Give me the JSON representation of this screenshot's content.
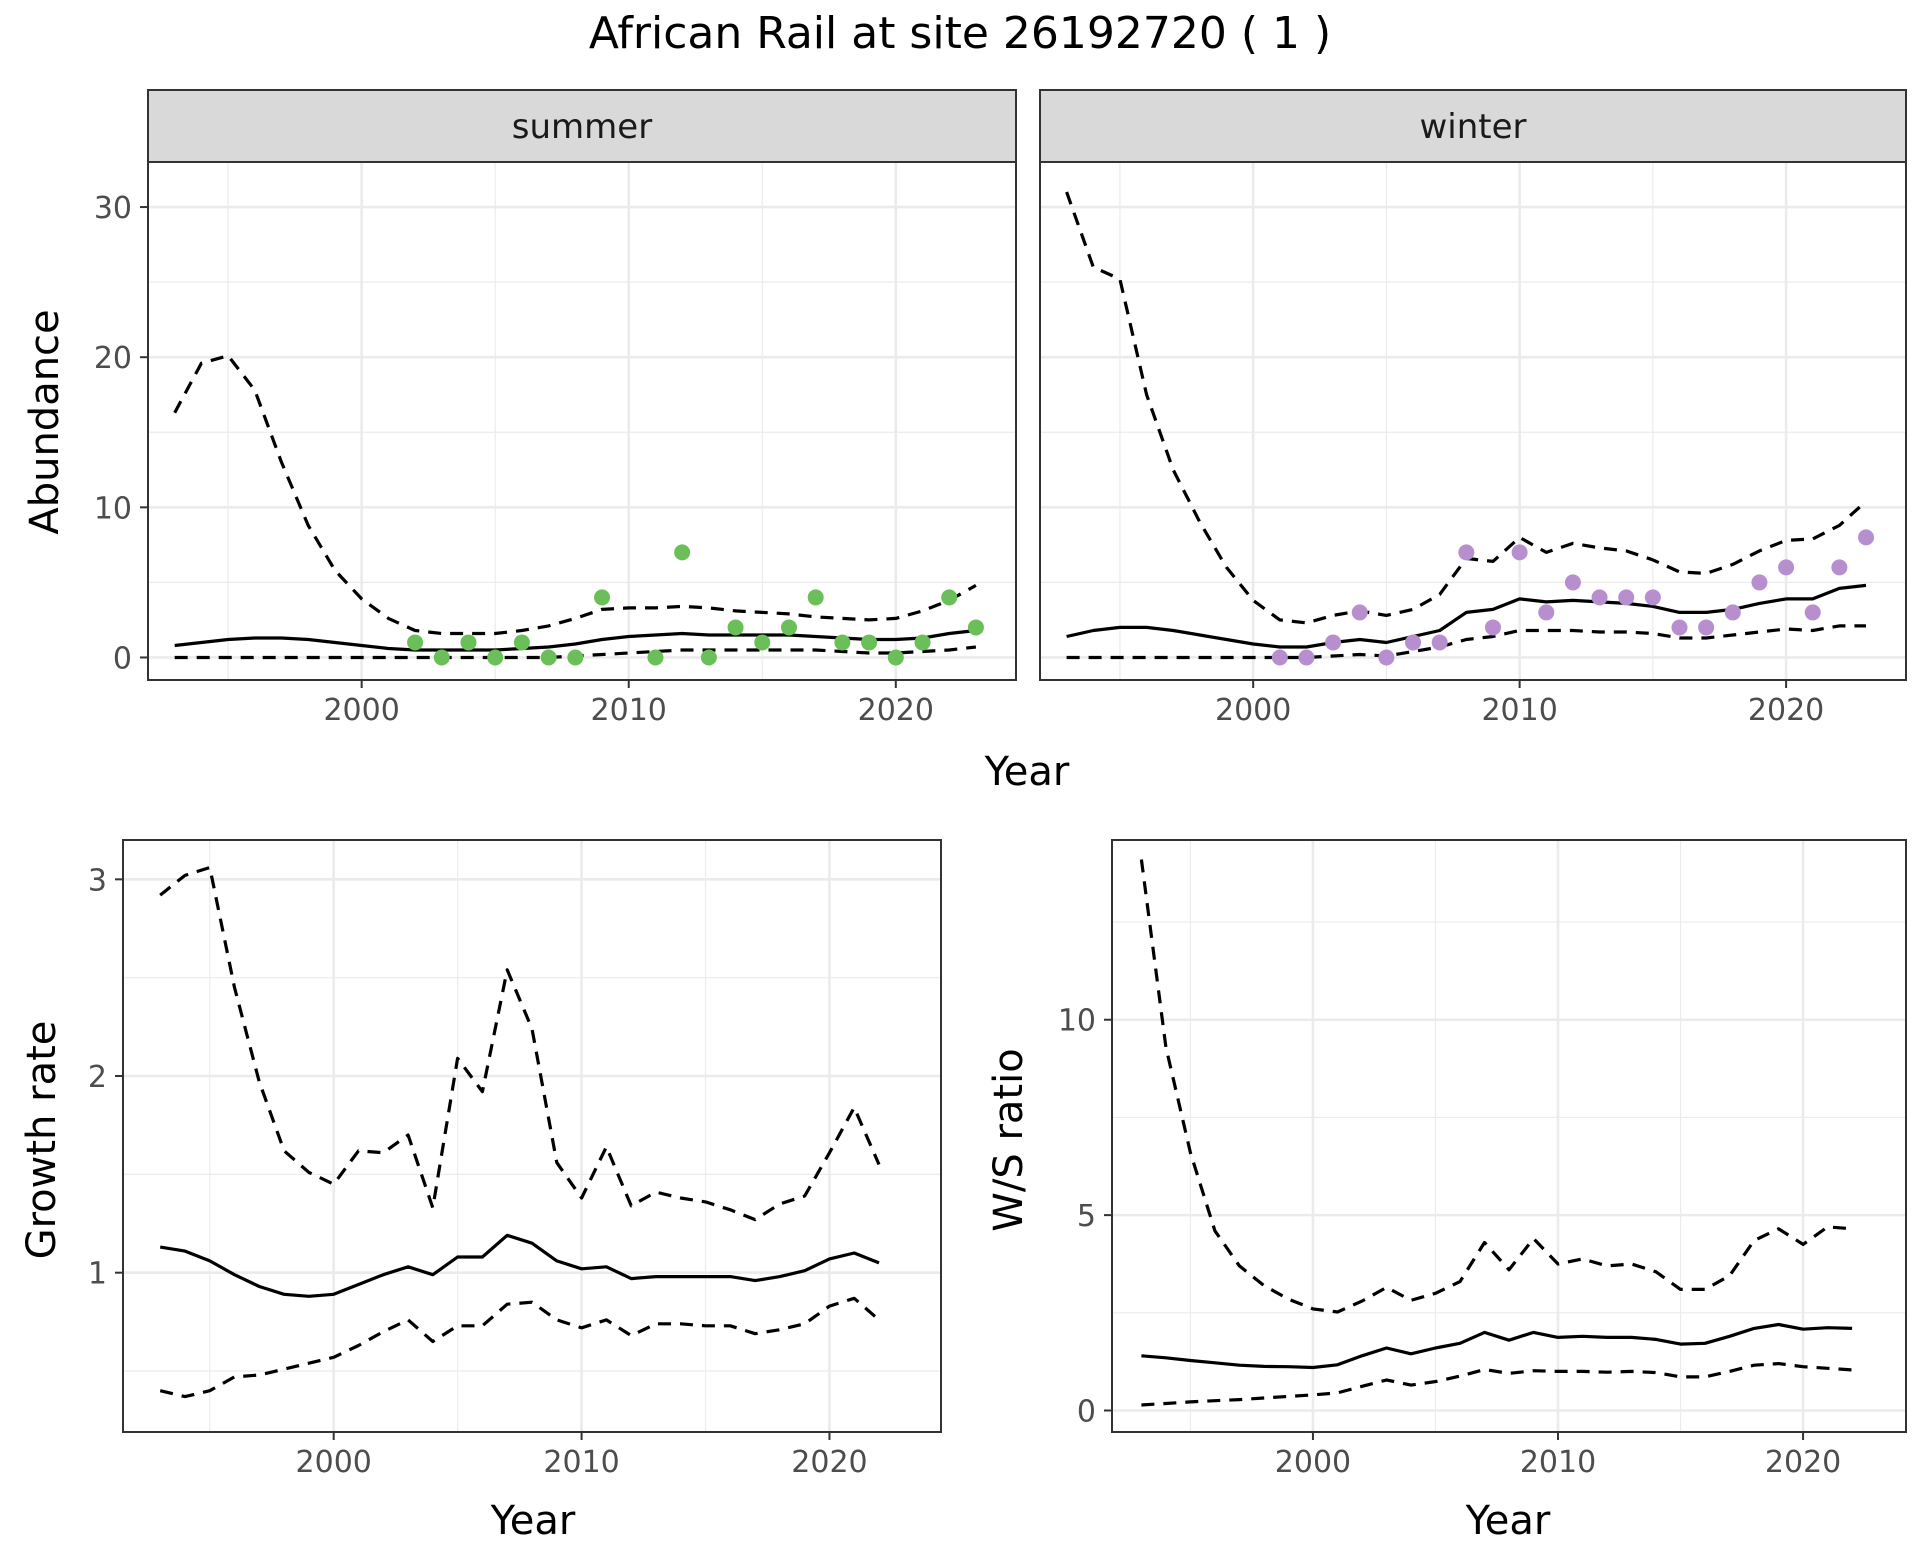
{
  "title": "African Rail at site 26192720 ( 1 )",
  "colors": {
    "summer_points": "#6bbf59",
    "winter_points": "#b78fce",
    "lines": "#000000",
    "strip_fill": "#d9d9d9",
    "grid": "#ebebeb"
  },
  "chart_data": [
    {
      "id": "abundance",
      "type": "line",
      "ylabel": "Abundance",
      "xlabel": "Year",
      "xlim": [
        1992,
        2024.5
      ],
      "ylim": [
        -1.5,
        33
      ],
      "xticks": [
        2000,
        2010,
        2020
      ],
      "yticks": [
        0,
        10,
        20,
        30
      ],
      "grid": true,
      "panels": [
        {
          "name": "summer",
          "point_color": "#6bbf59",
          "points": {
            "x": [
              2002,
              2003,
              2004,
              2005,
              2006,
              2007,
              2008,
              2009,
              2011,
              2012,
              2013,
              2014,
              2015,
              2016,
              2017,
              2018,
              2019,
              2020,
              2021,
              2022,
              2023
            ],
            "y": [
              1,
              0,
              1,
              0,
              1,
              0,
              0,
              4,
              0,
              7,
              0,
              2,
              1,
              2,
              4,
              1,
              1,
              0,
              1,
              4,
              2
            ]
          },
          "series": [
            {
              "role": "estimate",
              "x": [
                1993,
                1994,
                1995,
                1996,
                1997,
                1998,
                1999,
                2000,
                2001,
                2002,
                2003,
                2004,
                2005,
                2006,
                2007,
                2008,
                2009,
                2010,
                2011,
                2012,
                2013,
                2014,
                2015,
                2016,
                2017,
                2018,
                2019,
                2020,
                2021,
                2022,
                2023
              ],
              "y": [
                0.8,
                1.0,
                1.2,
                1.3,
                1.3,
                1.2,
                1.0,
                0.8,
                0.6,
                0.5,
                0.5,
                0.5,
                0.5,
                0.6,
                0.7,
                0.9,
                1.2,
                1.4,
                1.5,
                1.6,
                1.5,
                1.5,
                1.5,
                1.5,
                1.4,
                1.3,
                1.2,
                1.2,
                1.3,
                1.6,
                1.8
              ]
            },
            {
              "role": "upper",
              "x": [
                1993,
                1994,
                1995,
                1996,
                1997,
                1998,
                1999,
                2000,
                2001,
                2002,
                2003,
                2004,
                2005,
                2006,
                2007,
                2008,
                2009,
                2010,
                2011,
                2012,
                2013,
                2014,
                2015,
                2016,
                2017,
                2018,
                2019,
                2020,
                2021,
                2022,
                2023
              ],
              "y": [
                16.3,
                19.6,
                20.1,
                17.8,
                13.0,
                8.8,
                5.8,
                3.9,
                2.6,
                1.8,
                1.6,
                1.6,
                1.6,
                1.8,
                2.1,
                2.6,
                3.2,
                3.3,
                3.3,
                3.4,
                3.3,
                3.1,
                3.0,
                2.9,
                2.7,
                2.6,
                2.5,
                2.6,
                3.1,
                3.8,
                4.8
              ]
            },
            {
              "role": "lower",
              "x": [
                1993,
                1994,
                1995,
                1996,
                1997,
                1998,
                1999,
                2000,
                2001,
                2002,
                2003,
                2004,
                2005,
                2006,
                2007,
                2008,
                2009,
                2010,
                2011,
                2012,
                2013,
                2014,
                2015,
                2016,
                2017,
                2018,
                2019,
                2020,
                2021,
                2022,
                2023
              ],
              "y": [
                0,
                0,
                0,
                0,
                0,
                0,
                0,
                0,
                0,
                0,
                0,
                0,
                0,
                0,
                0,
                0.1,
                0.2,
                0.3,
                0.4,
                0.5,
                0.5,
                0.5,
                0.5,
                0.5,
                0.5,
                0.4,
                0.3,
                0.3,
                0.4,
                0.5,
                0.7
              ]
            }
          ]
        },
        {
          "name": "winter",
          "point_color": "#b78fce",
          "points": {
            "x": [
              2001,
              2002,
              2003,
              2004,
              2005,
              2006,
              2007,
              2008,
              2009,
              2010,
              2011,
              2012,
              2013,
              2014,
              2015,
              2016,
              2017,
              2018,
              2019,
              2020,
              2021,
              2022,
              2023
            ],
            "y": [
              0,
              0,
              1,
              3,
              0,
              1,
              1,
              7,
              2,
              7,
              3,
              5,
              4,
              4,
              4,
              2,
              2,
              3,
              5,
              6,
              3,
              6,
              8
            ]
          },
          "series": [
            {
              "role": "estimate",
              "x": [
                1993,
                1994,
                1995,
                1996,
                1997,
                1998,
                1999,
                2000,
                2001,
                2002,
                2003,
                2004,
                2005,
                2006,
                2007,
                2008,
                2009,
                2010,
                2011,
                2012,
                2013,
                2014,
                2015,
                2016,
                2017,
                2018,
                2019,
                2020,
                2021,
                2022,
                2023
              ],
              "y": [
                1.4,
                1.8,
                2.0,
                2.0,
                1.8,
                1.5,
                1.2,
                0.9,
                0.7,
                0.7,
                1.0,
                1.2,
                1.0,
                1.4,
                1.8,
                3.0,
                3.2,
                3.9,
                3.7,
                3.8,
                3.7,
                3.6,
                3.4,
                3.0,
                3.0,
                3.2,
                3.6,
                3.9,
                3.9,
                4.6,
                4.8
              ]
            },
            {
              "role": "upper",
              "x": [
                1993,
                1994,
                1995,
                1996,
                1997,
                1998,
                1999,
                2000,
                2001,
                2002,
                2003,
                2004,
                2005,
                2006,
                2007,
                2008,
                2009,
                2010,
                2011,
                2012,
                2013,
                2014,
                2015,
                2016,
                2017,
                2018,
                2019,
                2020,
                2021,
                2022,
                2023
              ],
              "y": [
                31.0,
                26.0,
                25.2,
                17.5,
                12.5,
                9.0,
                6.0,
                3.8,
                2.5,
                2.3,
                2.8,
                3.1,
                2.8,
                3.2,
                4.2,
                6.6,
                6.4,
                8.0,
                7.0,
                7.6,
                7.3,
                7.1,
                6.5,
                5.7,
                5.6,
                6.2,
                7.1,
                7.8,
                7.9,
                8.8,
                10.4
              ]
            },
            {
              "role": "lower",
              "x": [
                1993,
                1994,
                1995,
                1996,
                1997,
                1998,
                1999,
                2000,
                2001,
                2002,
                2003,
                2004,
                2005,
                2006,
                2007,
                2008,
                2009,
                2010,
                2011,
                2012,
                2013,
                2014,
                2015,
                2016,
                2017,
                2018,
                2019,
                2020,
                2021,
                2022,
                2023
              ],
              "y": [
                0,
                0,
                0,
                0,
                0,
                0,
                0,
                0,
                0,
                0,
                0.1,
                0.2,
                0.1,
                0.4,
                0.7,
                1.2,
                1.4,
                1.8,
                1.8,
                1.8,
                1.7,
                1.7,
                1.6,
                1.3,
                1.3,
                1.5,
                1.7,
                1.9,
                1.8,
                2.1,
                2.1
              ]
            }
          ]
        }
      ]
    },
    {
      "id": "growth",
      "type": "line",
      "ylabel": "Growth rate",
      "xlabel": "Year",
      "xlim": [
        1991.5,
        2024.5
      ],
      "ylim": [
        0.19,
        3.2
      ],
      "xticks": [
        2000,
        2010,
        2020
      ],
      "yticks": [
        1,
        2,
        3
      ],
      "grid": true,
      "series": [
        {
          "role": "estimate",
          "x": [
            1993,
            1994,
            1995,
            1996,
            1997,
            1998,
            1999,
            2000,
            2001,
            2002,
            2003,
            2004,
            2005,
            2006,
            2007,
            2008,
            2009,
            2010,
            2011,
            2012,
            2013,
            2014,
            2015,
            2016,
            2017,
            2018,
            2019,
            2020,
            2021,
            2022
          ],
          "y": [
            1.13,
            1.11,
            1.06,
            0.99,
            0.93,
            0.89,
            0.88,
            0.89,
            0.94,
            0.99,
            1.03,
            0.99,
            1.08,
            1.08,
            1.19,
            1.15,
            1.06,
            1.02,
            1.03,
            0.97,
            0.98,
            0.98,
            0.98,
            0.98,
            0.96,
            0.98,
            1.01,
            1.07,
            1.1,
            1.05
          ]
        },
        {
          "role": "upper",
          "x": [
            1993,
            1994,
            1995,
            1996,
            1997,
            1998,
            1999,
            2000,
            2001,
            2002,
            2003,
            2004,
            2005,
            2006,
            2007,
            2008,
            2009,
            2010,
            2011,
            2012,
            2013,
            2014,
            2015,
            2016,
            2017,
            2018,
            2019,
            2020,
            2021,
            2022
          ],
          "y": [
            2.92,
            3.02,
            3.06,
            2.45,
            1.97,
            1.62,
            1.51,
            1.45,
            1.62,
            1.61,
            1.7,
            1.33,
            2.09,
            1.92,
            2.54,
            2.24,
            1.56,
            1.38,
            1.64,
            1.34,
            1.41,
            1.38,
            1.36,
            1.32,
            1.27,
            1.35,
            1.39,
            1.61,
            1.84,
            1.55
          ]
        },
        {
          "role": "lower",
          "x": [
            1993,
            1994,
            1995,
            1996,
            1997,
            1998,
            1999,
            2000,
            2001,
            2002,
            2003,
            2004,
            2005,
            2006,
            2007,
            2008,
            2009,
            2010,
            2011,
            2012,
            2013,
            2014,
            2015,
            2016,
            2017,
            2018,
            2019,
            2020,
            2021,
            2022
          ],
          "y": [
            0.4,
            0.37,
            0.4,
            0.47,
            0.48,
            0.51,
            0.54,
            0.57,
            0.63,
            0.7,
            0.76,
            0.65,
            0.73,
            0.73,
            0.84,
            0.85,
            0.76,
            0.72,
            0.76,
            0.68,
            0.74,
            0.74,
            0.73,
            0.73,
            0.69,
            0.71,
            0.74,
            0.83,
            0.87,
            0.76
          ]
        }
      ]
    },
    {
      "id": "ratio",
      "type": "line",
      "ylabel": "W/S ratio",
      "xlabel": "Year",
      "xlim": [
        1991.8,
        2024.2
      ],
      "ylim": [
        -0.55,
        14.6
      ],
      "xticks": [
        2000,
        2010,
        2020
      ],
      "yticks": [
        0,
        5,
        10
      ],
      "grid": true,
      "series": [
        {
          "role": "estimate",
          "x": [
            1993,
            1994,
            1995,
            1996,
            1997,
            1998,
            1999,
            2000,
            2001,
            2002,
            2003,
            2004,
            2005,
            2006,
            2007,
            2008,
            2009,
            2010,
            2011,
            2012,
            2013,
            2014,
            2015,
            2016,
            2017,
            2018,
            2019,
            2020,
            2021,
            2022
          ],
          "y": [
            1.4,
            1.35,
            1.28,
            1.22,
            1.16,
            1.13,
            1.12,
            1.1,
            1.17,
            1.4,
            1.6,
            1.45,
            1.6,
            1.72,
            2.0,
            1.8,
            2.0,
            1.87,
            1.9,
            1.87,
            1.87,
            1.82,
            1.7,
            1.72,
            1.9,
            2.1,
            2.2,
            2.08,
            2.12,
            2.1
          ]
        },
        {
          "role": "upper",
          "x": [
            1993,
            1994,
            1995,
            1996,
            1997,
            1998,
            1999,
            2000,
            2001,
            2002,
            2003,
            2004,
            2005,
            2006,
            2007,
            2008,
            2009,
            2010,
            2011,
            2012,
            2013,
            2014,
            2015,
            2016,
            2017,
            2018,
            2019,
            2020,
            2021,
            2022
          ],
          "y": [
            14.1,
            9.3,
            6.6,
            4.6,
            3.7,
            3.2,
            2.85,
            2.6,
            2.52,
            2.8,
            3.15,
            2.82,
            3.0,
            3.3,
            4.3,
            3.6,
            4.4,
            3.75,
            3.88,
            3.7,
            3.75,
            3.55,
            3.1,
            3.1,
            3.45,
            4.35,
            4.65,
            4.25,
            4.7,
            4.65
          ]
        },
        {
          "role": "lower",
          "x": [
            1993,
            1994,
            1995,
            1996,
            1997,
            1998,
            1999,
            2000,
            2001,
            2002,
            2003,
            2004,
            2005,
            2006,
            2007,
            2008,
            2009,
            2010,
            2011,
            2012,
            2013,
            2014,
            2015,
            2016,
            2017,
            2018,
            2019,
            2020,
            2021,
            2022
          ],
          "y": [
            0.14,
            0.18,
            0.22,
            0.25,
            0.28,
            0.32,
            0.36,
            0.4,
            0.45,
            0.62,
            0.78,
            0.65,
            0.74,
            0.88,
            1.05,
            0.95,
            1.02,
            1.0,
            1.0,
            0.98,
            1.0,
            0.97,
            0.86,
            0.86,
            1.0,
            1.16,
            1.2,
            1.12,
            1.08,
            1.04
          ]
        }
      ]
    }
  ]
}
